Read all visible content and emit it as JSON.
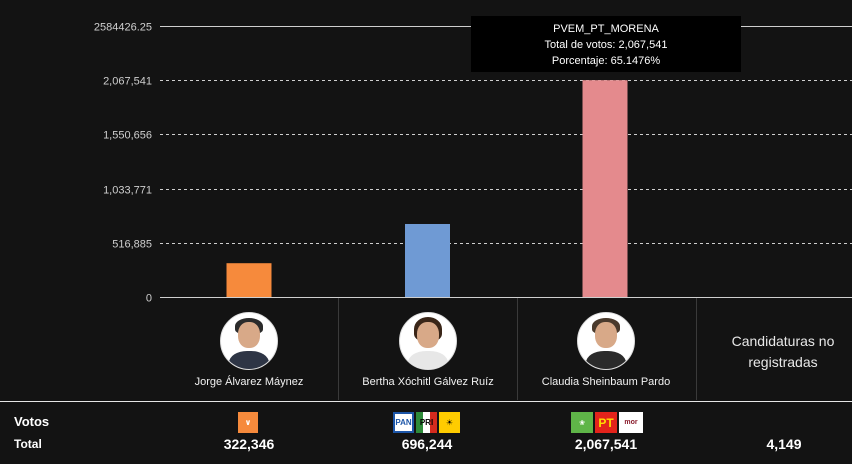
{
  "chart_data": {
    "type": "bar",
    "categories": [
      "Jorge Álvarez Máynez",
      "Bertha Xóchitl Gálvez Ruíz",
      "Claudia Sheinbaum Pardo",
      "Candidaturas no registradas"
    ],
    "values": [
      322346,
      696244,
      2067541,
      4149
    ],
    "bar_colors": [
      "#f68a3c",
      "#6f9ad4",
      "#e48a8d"
    ],
    "y_ticks": [
      "0",
      "516,885",
      "1,033,771",
      "1,550,656",
      "2,067,541",
      "2584426.25"
    ],
    "ylim": [
      0,
      2584426.25
    ],
    "grid": true,
    "tooltip": {
      "title": "PVEM_PT_MORENA",
      "line1": "Total de votos: 2,067,541",
      "line2": "Porcentaje: 65.1476%"
    }
  },
  "candidates": [
    {
      "name": "Jorge Álvarez Máynez"
    },
    {
      "name": "Bertha Xóchitl Gálvez Ruíz"
    },
    {
      "name": "Claudia Sheinbaum Pardo"
    }
  ],
  "unregistered_label": "Candidaturas no registradas",
  "footer": {
    "label_votes": "Votos",
    "label_total": "Total",
    "totals": [
      "322,346",
      "696,244",
      "2,067,541",
      "4,149"
    ]
  },
  "party_logos": {
    "mc": {
      "colors": [
        "#f68a3c"
      ]
    },
    "pan_pri_prd": {
      "labels": [
        "PAN",
        "PRI",
        "PRD"
      ],
      "colors": [
        "#1d56a8",
        "#d52b1e",
        "#ffcc00"
      ]
    },
    "verde_pt_morena": {
      "labels": [
        "VERDE",
        "PT",
        "morena"
      ],
      "colors": [
        "#5fb548",
        "#e3231b",
        "#ffffff"
      ]
    }
  }
}
